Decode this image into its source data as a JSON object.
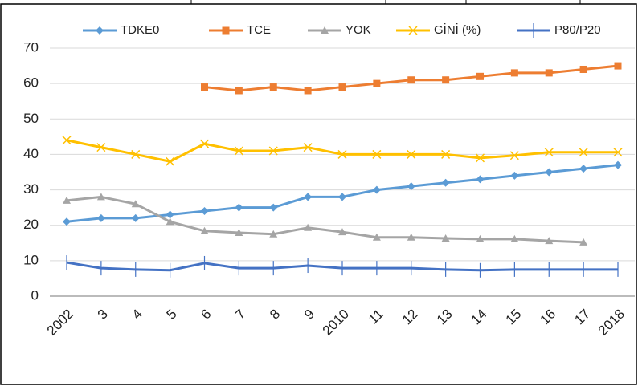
{
  "chart_data": {
    "type": "line",
    "categories": [
      "2002",
      "3",
      "4",
      "5",
      "6",
      "7",
      "8",
      "9",
      "2010",
      "11",
      "12",
      "13",
      "14",
      "15",
      "16",
      "17",
      "2018"
    ],
    "series": [
      {
        "name": "TDKE0",
        "color": "#5b9bd5",
        "marker": "diamond",
        "values": [
          21,
          22,
          22,
          23,
          24,
          25,
          25,
          28,
          28,
          30,
          31,
          32,
          33,
          34,
          35,
          36,
          37
        ]
      },
      {
        "name": "TCE",
        "color": "#ed7d31",
        "marker": "square",
        "values": [
          null,
          null,
          null,
          null,
          59,
          58,
          59,
          58,
          59,
          60,
          61,
          61,
          62,
          63,
          63,
          64,
          65
        ]
      },
      {
        "name": "YOK",
        "color": "#a5a5a5",
        "marker": "triangle",
        "values": [
          27,
          28,
          26,
          21,
          18.4,
          17.9,
          17.5,
          19.3,
          18.1,
          16.6,
          16.6,
          16.3,
          16.1,
          16.1,
          15.6,
          15.2,
          null
        ]
      },
      {
        "name": "GİNİ (%)",
        "color": "#ffc000",
        "marker": "x",
        "values": [
          44,
          42,
          40,
          38,
          43,
          41,
          41,
          42,
          40,
          40,
          40,
          40,
          39,
          39.7,
          40.6,
          40.6,
          40.6
        ]
      },
      {
        "name": "P80/P20",
        "color": "#4472c4",
        "marker": "plus",
        "values": [
          9.5,
          7.9,
          7.5,
          7.3,
          9.3,
          7.9,
          7.9,
          8.6,
          7.9,
          7.9,
          7.9,
          7.5,
          7.3,
          7.5,
          7.5,
          7.5,
          7.5
        ]
      }
    ],
    "ylim": [
      0,
      70
    ],
    "yticks": [
      0,
      10,
      20,
      30,
      40,
      50,
      60,
      70
    ],
    "grid": true
  }
}
